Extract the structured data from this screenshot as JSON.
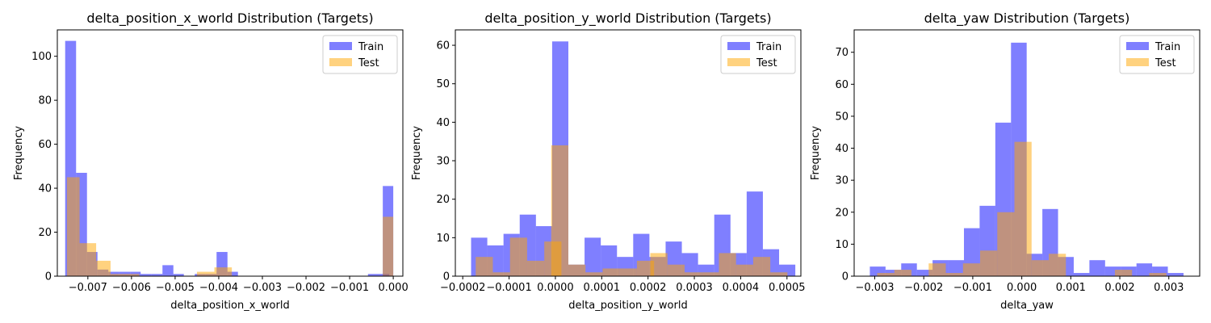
{
  "colors": {
    "train": "#0000ff",
    "test": "#ffa500"
  },
  "chart_data": [
    {
      "type": "histogram",
      "title": "delta_position_x_world Distribution (Targets)",
      "xlabel": "delta_position_x_world",
      "ylabel": "Frequency",
      "xlim": [
        -0.0077,
        0.00022
      ],
      "ylim": [
        0,
        112
      ],
      "xticks": [
        -0.007,
        -0.006,
        -0.005,
        -0.004,
        -0.003,
        -0.002,
        -0.001,
        0.0
      ],
      "xtick_labels": [
        "−0.007",
        "−0.006",
        "−0.005",
        "−0.004",
        "−0.003",
        "−0.002",
        "−0.001",
        "0.000"
      ],
      "yticks": [
        0,
        20,
        40,
        60,
        80,
        100
      ],
      "legend": {
        "position": "top-right",
        "entries": [
          "Train",
          "Test"
        ]
      },
      "series": [
        {
          "name": "Train",
          "color": "#0000ff",
          "alpha": 0.5,
          "bins": [
            [
              -0.00752,
              -0.00727,
              107
            ],
            [
              -0.00727,
              -0.00702,
              47
            ],
            [
              -0.00702,
              -0.00678,
              11
            ],
            [
              -0.00678,
              -0.00653,
              3
            ],
            [
              -0.00653,
              -0.00628,
              2
            ],
            [
              -0.00628,
              -0.00603,
              2
            ],
            [
              -0.00603,
              -0.00579,
              2
            ],
            [
              -0.00579,
              -0.00554,
              1
            ],
            [
              -0.00554,
              -0.00529,
              1
            ],
            [
              -0.00529,
              -0.00504,
              5
            ],
            [
              -0.00504,
              -0.0048,
              1
            ],
            [
              -0.00455,
              -0.0043,
              1
            ],
            [
              -0.0043,
              -0.00405,
              1
            ],
            [
              -0.00405,
              -0.0038,
              11
            ],
            [
              -0.0038,
              -0.00356,
              2
            ],
            [
              -0.00058,
              -9e-05,
              1
            ],
            [
              -0.00024,
              0.0,
              41
            ]
          ]
        },
        {
          "name": "Test",
          "color": "#ffa500",
          "alpha": 0.5,
          "bins": [
            [
              -0.00748,
              -0.00719,
              45
            ],
            [
              -0.00719,
              -0.00681,
              15
            ],
            [
              -0.00681,
              -0.00648,
              7
            ],
            [
              -0.00648,
              -0.00614,
              1
            ],
            [
              -0.00614,
              -0.00582,
              1
            ],
            [
              -0.0045,
              -0.0041,
              2
            ],
            [
              -0.0041,
              -0.0037,
              4
            ],
            [
              -0.00024,
              0.0,
              27
            ]
          ]
        }
      ]
    },
    {
      "type": "histogram",
      "title": "delta_position_y_world Distribution (Targets)",
      "xlabel": "delta_position_y_world",
      "ylabel": "Frequency",
      "xlim": [
        -0.000216,
        0.00053
      ],
      "ylim": [
        0,
        64
      ],
      "xticks": [
        -0.0002,
        -0.0001,
        0.0,
        0.0001,
        0.0002,
        0.0003,
        0.0004,
        0.0005
      ],
      "xtick_labels": [
        "−0.0002",
        "−0.0001",
        "0.0000",
        "0.0001",
        "0.0002",
        "0.0003",
        "0.0004",
        "0.0005"
      ],
      "yticks": [
        0,
        10,
        20,
        30,
        40,
        50,
        60
      ],
      "legend": {
        "position": "top-right",
        "entries": [
          "Train",
          "Test"
        ]
      },
      "series": [
        {
          "name": "Train",
          "color": "#0000ff",
          "alpha": 0.5,
          "bins": [
            [
              -0.000182,
              -0.000147,
              10
            ],
            [
              -0.000147,
              -0.000112,
              8
            ],
            [
              -0.000112,
              -7.7e-05,
              11
            ],
            [
              -7.7e-05,
              -4.2e-05,
              16
            ],
            [
              -4.2e-05,
              -7e-06,
              13
            ],
            [
              -7e-06,
              2.8e-05,
              61
            ],
            [
              2.8e-05,
              6.3e-05,
              3
            ],
            [
              6.3e-05,
              9.8e-05,
              10
            ],
            [
              9.8e-05,
              0.000133,
              8
            ],
            [
              0.000133,
              0.000168,
              5
            ],
            [
              0.000168,
              0.000203,
              11
            ],
            [
              0.000203,
              0.000238,
              5
            ],
            [
              0.000238,
              0.000273,
              9
            ],
            [
              0.000273,
              0.000308,
              6
            ],
            [
              0.000308,
              0.000343,
              3
            ],
            [
              0.000343,
              0.000378,
              16
            ],
            [
              0.000378,
              0.000413,
              6
            ],
            [
              0.000413,
              0.000448,
              22
            ],
            [
              0.000448,
              0.000483,
              7
            ],
            [
              0.000483,
              0.000518,
              3
            ]
          ]
        },
        {
          "name": "Test",
          "color": "#ffa500",
          "alpha": 0.5,
          "bins": [
            [
              -0.000172,
              -0.000135,
              5
            ],
            [
              -0.000135,
              -9.8e-05,
              1
            ],
            [
              -9.8e-05,
              -6.1e-05,
              10
            ],
            [
              -6.1e-05,
              -2.4e-05,
              4
            ],
            [
              -2.4e-05,
              1.3e-05,
              9
            ],
            [
              -9e-06,
              2.8e-05,
              34
            ],
            [
              2.8e-05,
              6.5e-05,
              3
            ],
            [
              6.5e-05,
              0.000102,
              1
            ],
            [
              0.000102,
              0.000139,
              2
            ],
            [
              0.000139,
              0.000176,
              2
            ],
            [
              0.000176,
              0.000213,
              4
            ],
            [
              0.000205,
              0.000242,
              6
            ],
            [
              0.000242,
              0.000279,
              3
            ],
            [
              0.000279,
              0.000316,
              1
            ],
            [
              0.000316,
              0.000353,
              1
            ],
            [
              0.000353,
              0.00039,
              6
            ],
            [
              0.00039,
              0.000427,
              3
            ],
            [
              0.000427,
              0.000464,
              5
            ],
            [
              0.000464,
              0.000501,
              1
            ]
          ]
        }
      ]
    },
    {
      "type": "histogram",
      "title": "delta_yaw Distribution (Targets)",
      "xlabel": "delta_yaw",
      "ylabel": "Frequency",
      "xlim": [
        -0.00342,
        0.00363
      ],
      "ylim": [
        0,
        77
      ],
      "xticks": [
        -0.003,
        -0.002,
        -0.001,
        0.0,
        0.001,
        0.002,
        0.003
      ],
      "xtick_labels": [
        "−0.003",
        "−0.002",
        "−0.001",
        "0.000",
        "0.001",
        "0.002",
        "0.003"
      ],
      "yticks": [
        0,
        10,
        20,
        30,
        40,
        50,
        60,
        70
      ],
      "legend": {
        "position": "top-right",
        "entries": [
          "Train",
          "Test"
        ]
      },
      "series": [
        {
          "name": "Train",
          "color": "#0000ff",
          "alpha": 0.5,
          "bins": [
            [
              -0.0031,
              -0.00278,
              3
            ],
            [
              -0.00278,
              -0.00246,
              2
            ],
            [
              -0.00246,
              -0.00214,
              4
            ],
            [
              -0.00214,
              -0.00182,
              2
            ],
            [
              -0.00182,
              -0.0015,
              5
            ],
            [
              -0.0015,
              -0.00118,
              5
            ],
            [
              -0.00118,
              -0.00086,
              15
            ],
            [
              -0.00086,
              -0.00054,
              22
            ],
            [
              -0.00054,
              -0.00022,
              48
            ],
            [
              -0.00022,
              0.0001,
              73
            ],
            [
              0.0001,
              0.00042,
              7
            ],
            [
              0.00042,
              0.00074,
              21
            ],
            [
              0.00074,
              0.00106,
              6
            ],
            [
              0.00106,
              0.00138,
              1
            ],
            [
              0.00138,
              0.0017,
              5
            ],
            [
              0.0017,
              0.00202,
              3
            ],
            [
              0.00202,
              0.00234,
              3
            ],
            [
              0.00234,
              0.00266,
              4
            ],
            [
              0.00266,
              0.00298,
              3
            ],
            [
              0.00298,
              0.0033,
              1
            ]
          ]
        },
        {
          "name": "Test",
          "color": "#ffa500",
          "alpha": 0.5,
          "bins": [
            [
              -0.00295,
              -0.0026,
              1
            ],
            [
              -0.0026,
              -0.00225,
              2
            ],
            [
              -0.0019,
              -0.00155,
              4
            ],
            [
              -0.00155,
              -0.0012,
              1
            ],
            [
              -0.0012,
              -0.00085,
              4
            ],
            [
              -0.00085,
              -0.0005,
              8
            ],
            [
              -0.0005,
              -0.00015,
              20
            ],
            [
              -0.00015,
              0.0002,
              42
            ],
            [
              0.0002,
              0.00055,
              5
            ],
            [
              0.00055,
              0.0009,
              7
            ],
            [
              0.0019,
              0.00225,
              2
            ],
            [
              0.0026,
              0.00295,
              1
            ]
          ]
        }
      ]
    }
  ]
}
